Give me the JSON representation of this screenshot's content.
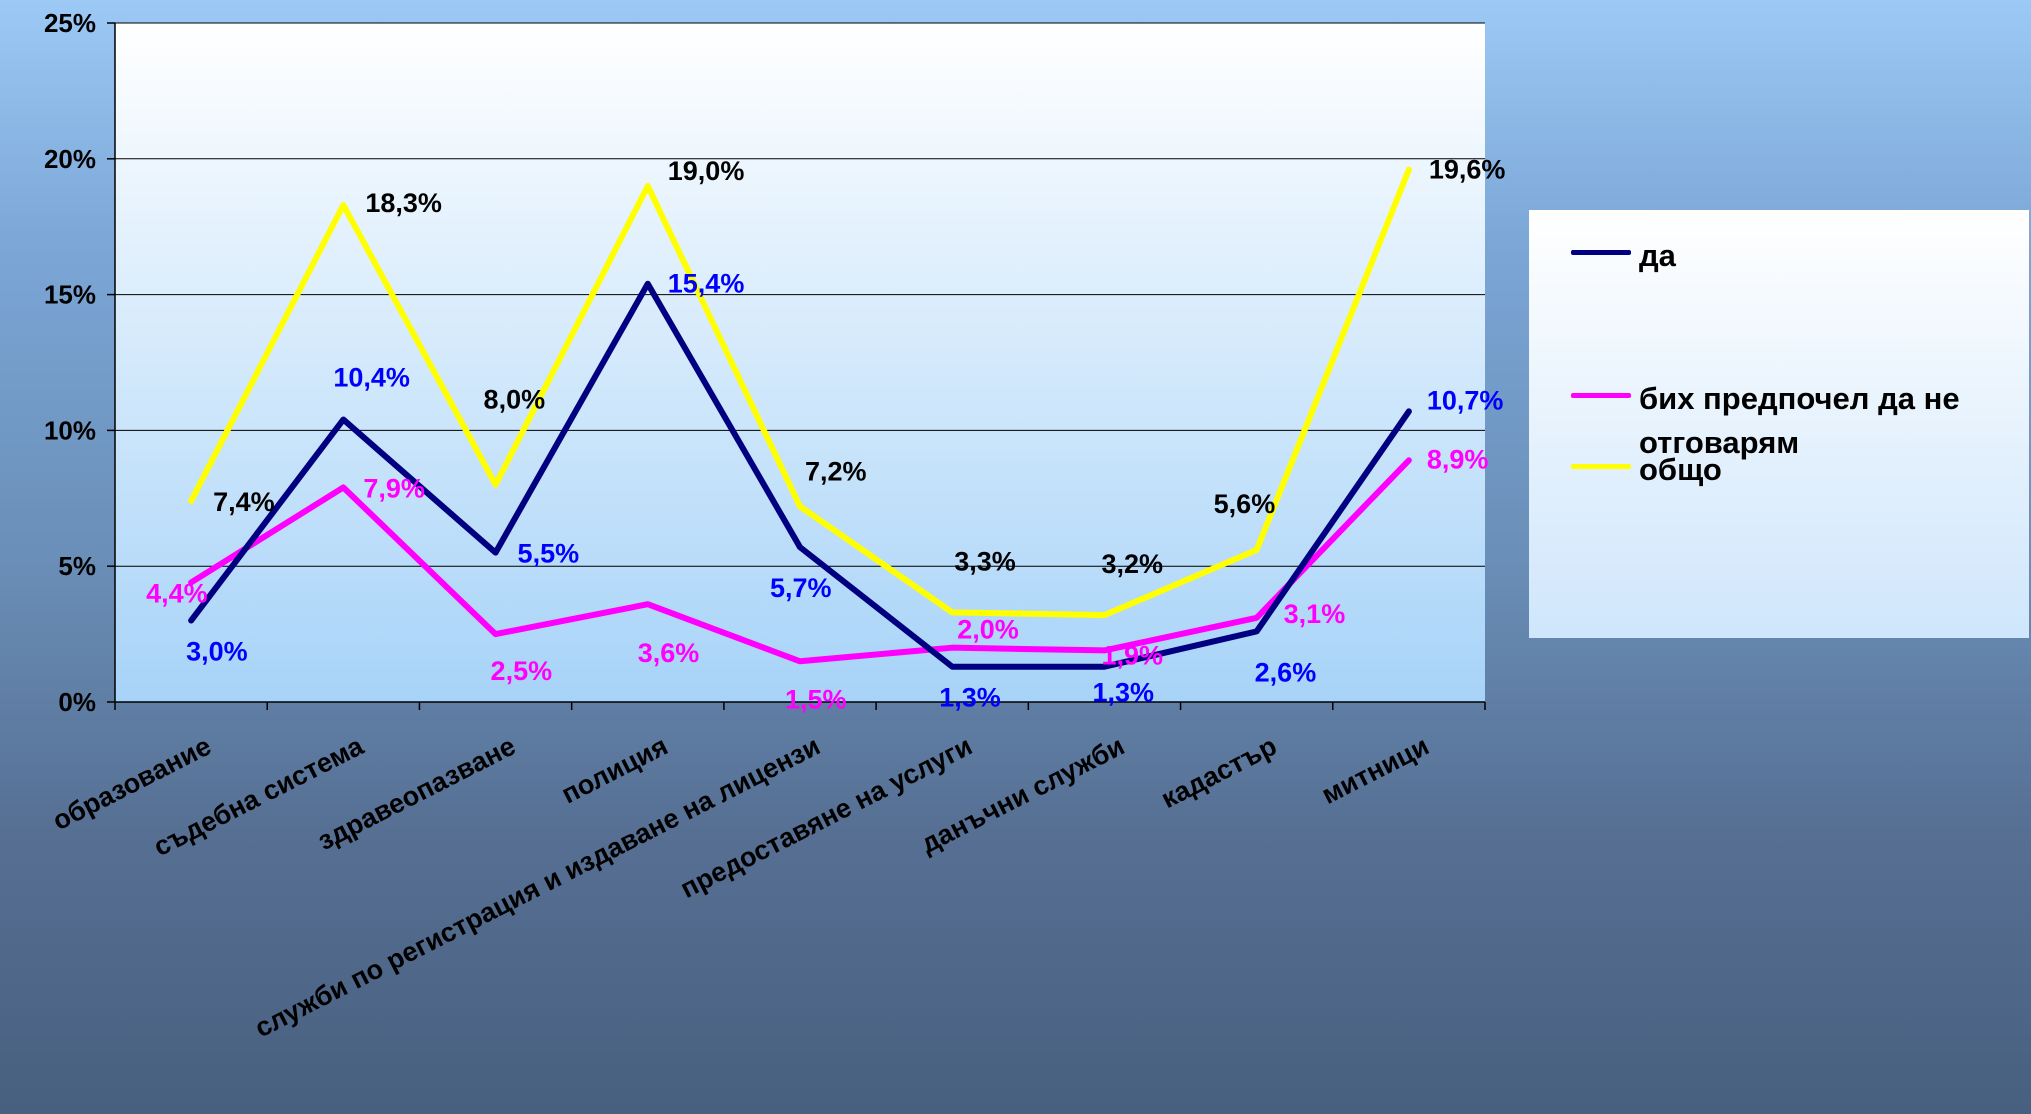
{
  "chart_data": {
    "type": "line",
    "categories": [
      "образование",
      "съдебна система",
      "здравеопазване",
      "полиция",
      "служби по регистрация и издаване на лицензи",
      "предоставяне на услуги",
      "данъчни служби",
      "кадастър",
      "митници"
    ],
    "series": [
      {
        "name": "да",
        "color": "#000080",
        "values": [
          3.0,
          10.4,
          5.5,
          15.4,
          5.7,
          1.3,
          1.3,
          2.6,
          10.7
        ],
        "labels": [
          "3,0%",
          "10,4%",
          "5,5%",
          "15,4%",
          "5,7%",
          "1,3%",
          "1,3%",
          "2,6%",
          "10,7%"
        ],
        "label_color": "#0000ff"
      },
      {
        "name": "бих предпочел да не отговарям",
        "color": "#ff00ff",
        "values": [
          4.4,
          7.9,
          2.5,
          3.6,
          1.5,
          2.0,
          1.9,
          3.1,
          8.9
        ],
        "labels": [
          "4,4%",
          "7,9%",
          "2,5%",
          "3,6%",
          "1,5%",
          "2,0%",
          "1,9%",
          "3,1%",
          "8,9%"
        ],
        "label_color": "#ff00ff"
      },
      {
        "name": "общо",
        "color": "#ffff00",
        "values": [
          7.4,
          18.3,
          8.0,
          19.0,
          7.2,
          3.3,
          3.2,
          5.6,
          19.6
        ],
        "labels": [
          "7,4%",
          "18,3%",
          "8,0%",
          "19,0%",
          "7,2%",
          "3,3%",
          "3,2%",
          "5,6%",
          "19,6%"
        ],
        "label_color": "#000000"
      }
    ],
    "yticks": [
      "0%",
      "5%",
      "10%",
      "15%",
      "20%",
      "25%"
    ],
    "ylim": [
      0,
      25
    ],
    "grid": true,
    "legend": "right"
  }
}
